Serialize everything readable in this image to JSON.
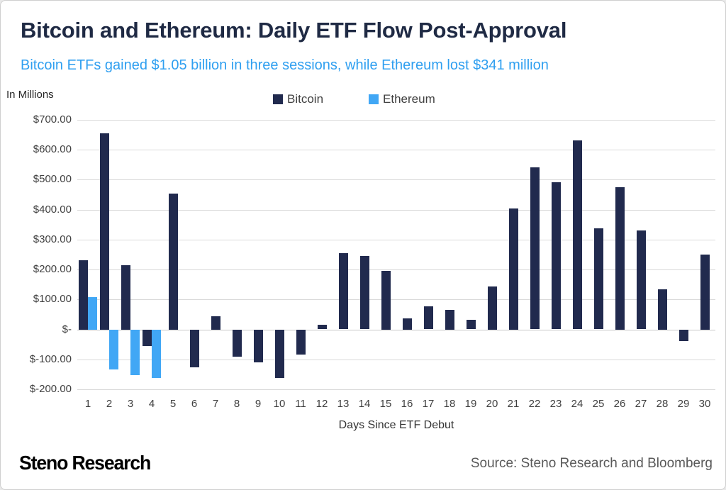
{
  "header": {
    "title": "Bitcoin and Ethereum: Daily ETF Flow Post-Approval",
    "subtitle": "Bitcoin ETFs gained $1.05 billion in three sessions, while Ethereum lost $341 million"
  },
  "footer": {
    "logo_text": "Steno Research",
    "source_text": "Source: Steno Research and Bloomberg"
  },
  "colors": {
    "bitcoin_bar": "#212A4E",
    "ethereum_bar": "#41A7F5",
    "title_text": "#1F2A44",
    "subtitle_text": "#2F9FF0",
    "gridline": "#D9D9D9",
    "axis_text": "#404040",
    "source_text": "#595959"
  },
  "chart_data": {
    "type": "bar",
    "title": "Bitcoin and Ethereum: Daily ETF Flow Post-Approval",
    "subtitle": "Bitcoin ETFs gained $1.05 billion in three sessions, while Ethereum lost $341 million",
    "units_label": "In Millions",
    "xlabel": "Days Since ETF Debut",
    "ylabel": "In Millions",
    "ylim": [
      -200,
      700
    ],
    "ytick_step": 100,
    "ytick_labels": [
      "$700.00",
      "$600.00",
      "$500.00",
      "$400.00",
      "$300.00",
      "$200.00",
      "$100.00",
      "$-",
      "$-100.00",
      "$-200.00"
    ],
    "grid": true,
    "legend_position": "top",
    "categories": [
      1,
      2,
      3,
      4,
      5,
      6,
      7,
      8,
      9,
      10,
      11,
      12,
      13,
      14,
      15,
      16,
      17,
      18,
      19,
      20,
      21,
      22,
      23,
      24,
      25,
      26,
      27,
      28,
      29,
      30
    ],
    "series": [
      {
        "name": "Bitcoin",
        "color": "#212A4E",
        "values": [
          232,
          655,
          215,
          -55,
          454,
          -127,
          43,
          -92,
          -110,
          -162,
          -85,
          15,
          254,
          245,
          196,
          36,
          78,
          66,
          33,
          144,
          405,
          541,
          492,
          632,
          338,
          476,
          330,
          135,
          -40,
          251
        ]
      },
      {
        "name": "Ethereum",
        "color": "#41A7F5",
        "values": [
          107,
          -133,
          -152,
          -163,
          null,
          null,
          null,
          null,
          null,
          null,
          null,
          null,
          null,
          null,
          null,
          null,
          null,
          null,
          null,
          null,
          null,
          null,
          null,
          null,
          null,
          null,
          null,
          null,
          null,
          null
        ]
      }
    ]
  }
}
